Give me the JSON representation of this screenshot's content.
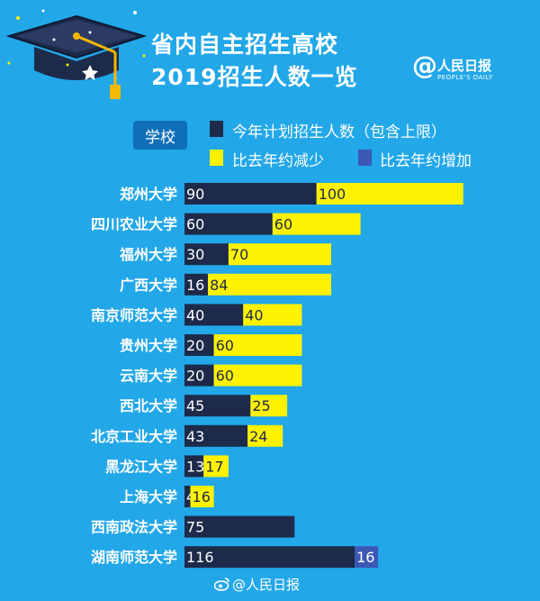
{
  "header": {
    "title_line1": "省内自主招生高校",
    "title_line2": "2019招生人数一览"
  },
  "brand": {
    "at": "@",
    "name": "人民日报",
    "sub": "PEOPLE'S DAILY"
  },
  "legend": {
    "category_label": "学校",
    "items": [
      {
        "label": "今年计划招生人数（包含上限）",
        "color": "#1d2a4a"
      },
      {
        "label": "比去年约减少",
        "color": "#fef200"
      },
      {
        "label": "比去年约增加",
        "color": "#3b58b5"
      }
    ]
  },
  "colors": {
    "background": "#22a7e9",
    "plan": "#1d2a4a",
    "decrease": "#fef200",
    "increase": "#3b58b5"
  },
  "icons": [
    "graduation-cap-icon",
    "weibo-icon"
  ],
  "chart_data": {
    "type": "bar",
    "orientation": "horizontal",
    "stacked": true,
    "title": "省内自主招生高校 2019招生人数一览",
    "categories": [
      "郑州大学",
      "四川农业大学",
      "福州大学",
      "广西大学",
      "南京师范大学",
      "贵州大学",
      "云南大学",
      "西北大学",
      "北京工业大学",
      "黑龙江大学",
      "上海大学",
      "西南政法大学",
      "湖南师范大学"
    ],
    "series": [
      {
        "name": "今年计划招生人数（包含上限）",
        "values": [
          90,
          60,
          30,
          16,
          40,
          20,
          20,
          45,
          43,
          13,
          4,
          75,
          116
        ]
      },
      {
        "name": "比去年约减少",
        "values": [
          100,
          60,
          70,
          84,
          40,
          60,
          60,
          25,
          24,
          17,
          16,
          null,
          null
        ]
      },
      {
        "name": "比去年约增加",
        "values": [
          null,
          null,
          null,
          null,
          null,
          null,
          null,
          null,
          null,
          null,
          null,
          null,
          16
        ]
      }
    ],
    "value_labels": [
      [
        "90",
        "100"
      ],
      [
        "60",
        "60"
      ],
      [
        "30",
        "70"
      ],
      [
        "16",
        "84"
      ],
      [
        "40",
        "40"
      ],
      [
        "20",
        "60"
      ],
      [
        "20",
        "60"
      ],
      [
        "45",
        "25"
      ],
      [
        "43",
        "24"
      ],
      [
        "13",
        "17"
      ],
      [
        "4",
        "16"
      ],
      [
        "75"
      ],
      [
        "116",
        "16"
      ]
    ],
    "xlim": [
      0,
      190
    ],
    "grid": false,
    "legend_position": "top"
  },
  "footer": {
    "text": "@人民日报"
  }
}
